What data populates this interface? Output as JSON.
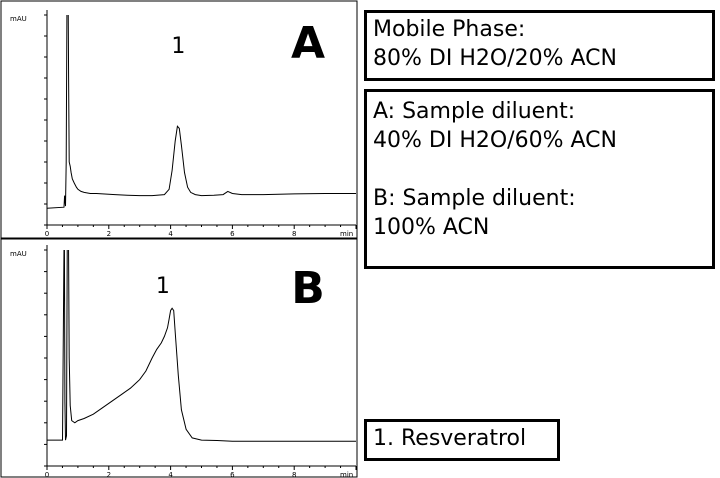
{
  "chart_data": [
    {
      "type": "line",
      "panel_letter": "A",
      "ylabel": "mAU",
      "xlabel": "min",
      "xlim": [
        0,
        10
      ],
      "x_ticks": [
        "0",
        "2",
        "4",
        "6",
        "8"
      ],
      "x_minor_step": 0.5,
      "grid": false,
      "peak_label": "1",
      "peak_label_at": {
        "x": 4.25,
        "y": 0.82
      },
      "series": [
        {
          "x": [
            0,
            0.55,
            0.57,
            0.6,
            0.62,
            0.65,
            0.68,
            0.7,
            0.72,
            0.75,
            0.78,
            0.82,
            0.88,
            0.95,
            1.0,
            1.1,
            1.2,
            1.4,
            1.6,
            1.8,
            2.2,
            2.6,
            3.0,
            3.4,
            3.8,
            3.95,
            4.05,
            4.15,
            4.22,
            4.28,
            4.35,
            4.45,
            4.55,
            4.65,
            4.8,
            5.0,
            5.4,
            5.7,
            5.85,
            6.0,
            6.3,
            7.0,
            8.0,
            9.0,
            10.0
          ],
          "y": [
            0.08,
            0.085,
            0.14,
            0.09,
            0.3,
            1.2,
            1.2,
            0.7,
            0.3,
            0.28,
            0.25,
            0.22,
            0.2,
            0.18,
            0.17,
            0.16,
            0.155,
            0.15,
            0.15,
            0.148,
            0.145,
            0.142,
            0.14,
            0.14,
            0.145,
            0.17,
            0.26,
            0.4,
            0.47,
            0.46,
            0.38,
            0.25,
            0.18,
            0.155,
            0.145,
            0.14,
            0.142,
            0.145,
            0.16,
            0.15,
            0.145,
            0.145,
            0.148,
            0.15,
            0.15
          ]
        }
      ]
    },
    {
      "type": "line",
      "panel_letter": "B",
      "ylabel": "mAU",
      "xlabel": "min",
      "xlim": [
        0,
        10
      ],
      "x_ticks": [
        "0",
        "2",
        "4",
        "6",
        "8"
      ],
      "x_minor_step": 0.5,
      "grid": false,
      "peak_label": "1",
      "peak_label_at": {
        "x": 3.75,
        "y": 0.8
      },
      "series": [
        {
          "x": [
            0,
            0.5,
            0.56,
            0.58,
            0.6,
            0.63,
            0.66,
            0.69,
            0.72,
            0.75,
            0.8,
            0.9,
            1.0,
            1.2,
            1.5,
            1.8,
            2.1,
            2.4,
            2.7,
            3.0,
            3.2,
            3.4,
            3.55,
            3.7,
            3.8,
            3.9,
            3.95,
            4.0,
            4.05,
            4.1,
            4.15,
            4.25,
            4.35,
            4.5,
            4.7,
            5.0,
            5.5,
            6.0,
            7.0,
            8.0,
            9.0,
            10.0
          ],
          "y": [
            0.12,
            0.12,
            1.2,
            0.3,
            0.12,
            0.14,
            1.2,
            1.2,
            0.5,
            0.28,
            0.21,
            0.2,
            0.21,
            0.22,
            0.24,
            0.27,
            0.3,
            0.33,
            0.36,
            0.4,
            0.44,
            0.5,
            0.54,
            0.57,
            0.6,
            0.64,
            0.68,
            0.72,
            0.73,
            0.72,
            0.62,
            0.42,
            0.26,
            0.17,
            0.13,
            0.12,
            0.118,
            0.115,
            0.115,
            0.115,
            0.115,
            0.115
          ]
        }
      ]
    }
  ],
  "info": {
    "mobile_phase_lines": [
      "Mobile Phase:",
      "80% DI H2O/20% ACN"
    ],
    "diluent_a_lines": [
      "A: Sample diluent:",
      "40% DI H2O/60% ACN"
    ],
    "diluent_b_lines": [
      "B: Sample diluent:",
      "100% ACN"
    ],
    "legend_text": "1. Resveratrol"
  }
}
